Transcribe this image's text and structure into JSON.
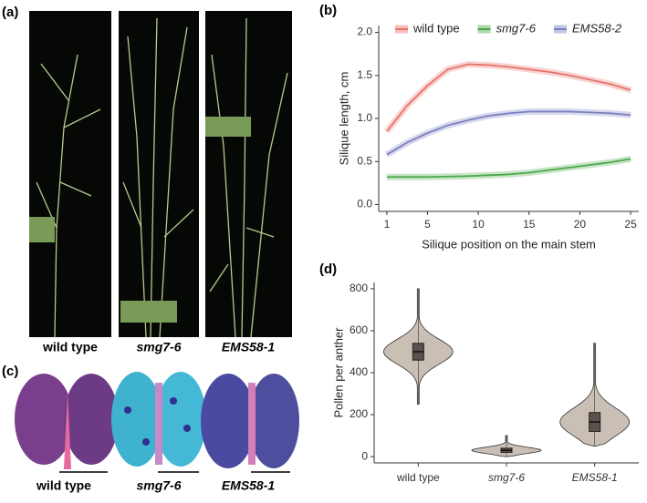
{
  "panels": {
    "a": {
      "label": "(a)",
      "captions": [
        "wild type",
        "smg7-6",
        "EMS58-1"
      ]
    },
    "c": {
      "label": "(c)",
      "captions": [
        "wild type",
        "smg7-6",
        "EMS58-1"
      ]
    }
  },
  "chart_data": [
    {
      "type": "line",
      "label": "(b)",
      "xlabel": "Silique position on the main stem",
      "ylabel": "Silique length, cm",
      "x": [
        1,
        3,
        5,
        7,
        9,
        11,
        13,
        15,
        17,
        19,
        21,
        23,
        25
      ],
      "series": [
        {
          "name": "wild type",
          "color": "#e8716b",
          "italic": false,
          "values": [
            0.85,
            1.15,
            1.38,
            1.57,
            1.63,
            1.62,
            1.6,
            1.57,
            1.54,
            1.5,
            1.45,
            1.4,
            1.33
          ]
        },
        {
          "name": "smg7-6",
          "color": "#4aa84a",
          "italic": true,
          "values": [
            0.32,
            0.32,
            0.32,
            0.325,
            0.33,
            0.34,
            0.35,
            0.37,
            0.4,
            0.43,
            0.46,
            0.49,
            0.53
          ]
        },
        {
          "name": "EMS58-2",
          "color": "#7b7fc0",
          "italic": true,
          "values": [
            0.58,
            0.72,
            0.83,
            0.92,
            0.98,
            1.03,
            1.06,
            1.08,
            1.08,
            1.08,
            1.07,
            1.06,
            1.04
          ]
        }
      ],
      "xlim": [
        0.2,
        25.8
      ],
      "xticks": [
        1,
        5,
        10,
        15,
        20,
        25
      ],
      "ylim": [
        -0.08,
        2.08
      ],
      "yticks": [
        {
          "value": 0,
          "label": "0.0"
        },
        0.5,
        {
          "value": 1,
          "label": "1.0"
        },
        1.5,
        {
          "value": 2,
          "label": "2.0"
        }
      ]
    },
    {
      "type": "violin",
      "label": "(d)",
      "ylabel": "Pollen per anther",
      "color": "#c9bfb5",
      "box_color": "#5a524b",
      "categories": [
        "wild type",
        "smg7-6",
        "EMS58-1"
      ],
      "category_italic": [
        false,
        true,
        true
      ],
      "min": [
        250,
        0,
        50
      ],
      "q1": [
        460,
        20,
        120
      ],
      "median": [
        500,
        30,
        165
      ],
      "q3": [
        540,
        40,
        210
      ],
      "max": [
        800,
        100,
        540
      ],
      "ylim": [
        -30,
        830
      ],
      "yticks": [
        0,
        200,
        400,
        600,
        800
      ]
    }
  ]
}
